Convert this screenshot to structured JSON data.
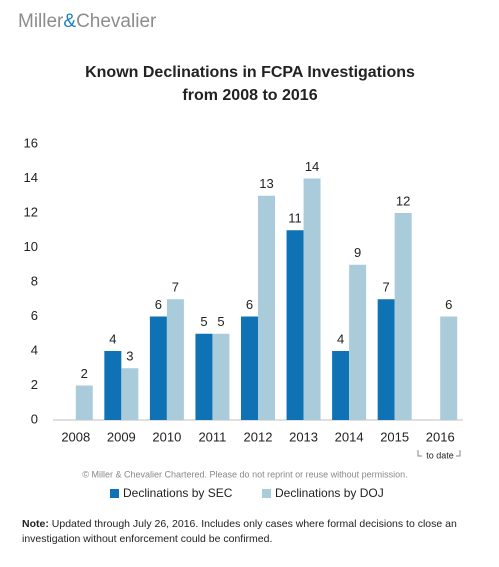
{
  "logo": [
    "Miller",
    "&",
    "Chevalier"
  ],
  "chart_data": {
    "type": "bar",
    "title": [
      "Known Declinations in FCPA Investigations",
      "from 2008 to 2016"
    ],
    "categories": [
      "2008",
      "2009",
      "2010",
      "2011",
      "2012",
      "2013",
      "2014",
      "2015",
      "2016"
    ],
    "series": [
      {
        "name": "Declinations by SEC",
        "color": "#0e72b4",
        "values": [
          null,
          4,
          6,
          5,
          6,
          11,
          4,
          7,
          null
        ]
      },
      {
        "name": "Declinations by DOJ",
        "color": "#a9cbda",
        "values": [
          2,
          3,
          7,
          5,
          13,
          14,
          9,
          12,
          6
        ]
      }
    ],
    "ylim": [
      0,
      16
    ],
    "yticks": [
      0,
      2,
      4,
      6,
      8,
      10,
      12,
      14,
      16
    ],
    "grid": false,
    "annotation": "to date",
    "copyright": "© Miller & Chevalier Chartered. Please do not reprint or reuse without permission.",
    "legend": "bottom"
  },
  "note": {
    "label": "Note:",
    "text": "Updated through July 26, 2016. Includes only cases where formal decisions to close an investigation without enforcement could be confirmed."
  }
}
